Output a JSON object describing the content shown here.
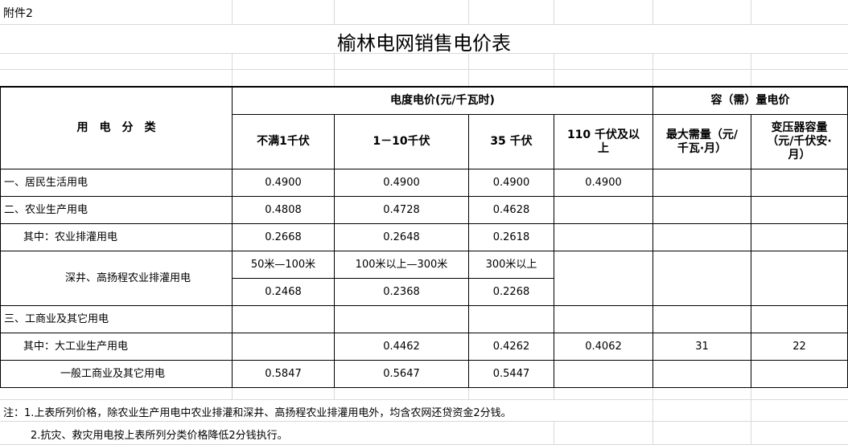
{
  "attachment": "附件2",
  "title": "榆林电网销售电价表",
  "header": {
    "category": "用　电　分　类",
    "energy_price": "电度电价(元/千瓦时)",
    "capacity_price": "容（需）量电价",
    "cols": [
      "不满1千伏",
      "1－10千伏",
      "35 千伏",
      "110 千伏及以上",
      "最大需量（元/千瓦·月）",
      "变压器容量（元/千伏安·月）"
    ]
  },
  "rows": [
    {
      "label": "一、居民生活用电",
      "v": [
        "0.4900",
        "0.4900",
        "0.4900",
        "0.4900",
        "",
        ""
      ]
    },
    {
      "label": "二、农业生产用电",
      "v": [
        "0.4808",
        "0.4728",
        "0.4628",
        "",
        "",
        ""
      ]
    },
    {
      "label": "其中：农业排灌用电",
      "v": [
        "0.2668",
        "0.2648",
        "0.2618",
        "",
        "",
        ""
      ]
    },
    {
      "label": "深井、高扬程农业排灌用电",
      "sub": [
        "50米—100米",
        "100米以上—300米",
        "300米以上"
      ],
      "v": [
        "0.2468",
        "0.2368",
        "0.2268",
        "",
        "",
        ""
      ]
    },
    {
      "label": "三、工商业及其它用电",
      "v": [
        "",
        "",
        "",
        "",
        "",
        ""
      ]
    },
    {
      "label": "其中：大工业生产用电",
      "v": [
        "",
        "0.4462",
        "0.4262",
        "0.4062",
        "31",
        "22"
      ]
    },
    {
      "label": "一般工商业及其它用电",
      "v": [
        "0.5847",
        "0.5647",
        "0.5447",
        "",
        "",
        ""
      ]
    }
  ],
  "notes": [
    "注：1.上表所列价格，除农业生产用电中农业排灌和深井、高扬程农业排灌用电外，均含农网还贷资金2分钱。",
    "2.抗灾、救灾用电按上表所列分类价格降低2分钱执行。"
  ]
}
